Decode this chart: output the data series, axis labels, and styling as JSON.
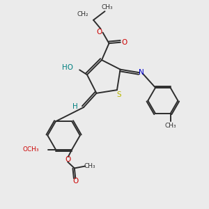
{
  "background_color": "#ebebeb",
  "bond_color": "#2d2d2d",
  "S_color": "#b8b800",
  "N_color": "#0000cc",
  "O_color": "#cc0000",
  "HO_color": "#008080",
  "figsize": [
    3.0,
    3.0
  ],
  "dpi": 100,
  "xlim": [
    0,
    10
  ],
  "ylim": [
    0,
    10
  ]
}
